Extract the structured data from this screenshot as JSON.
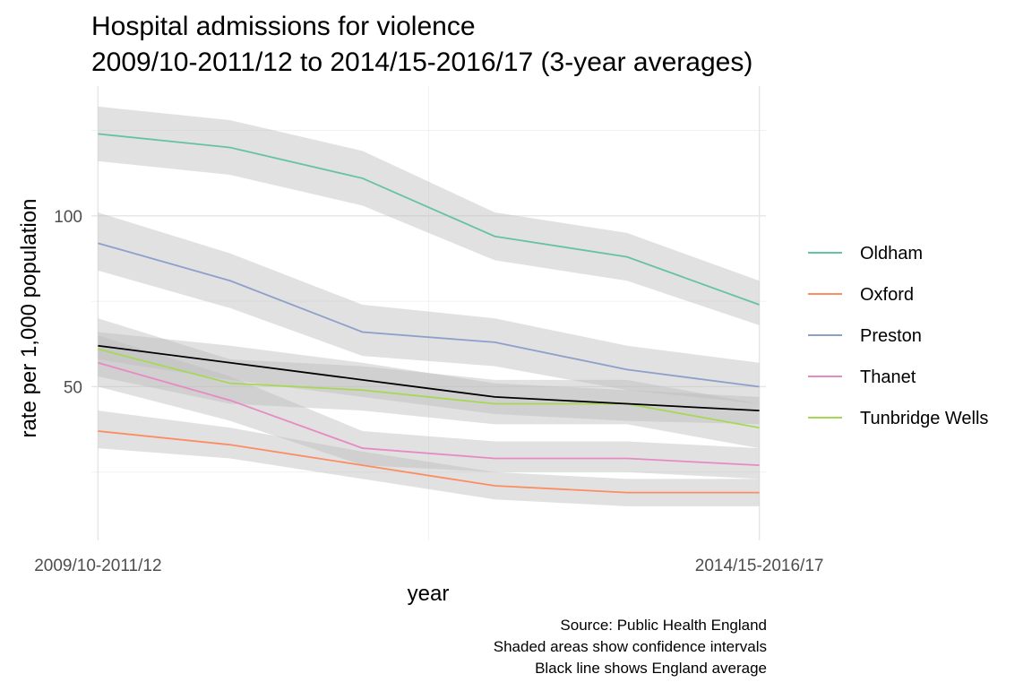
{
  "chart_data": {
    "type": "line",
    "title": "Hospital admissions for violence",
    "subtitle": "2009/10-2011/12 to 2014/15-2016/17 (3-year averages)",
    "xlabel": "year",
    "ylabel": "rate per 1,000 population",
    "x": [
      1,
      2,
      3,
      4,
      5,
      6
    ],
    "x_tick_labels": [
      {
        "x": 1,
        "label": "2009/10-2011/12"
      },
      {
        "x": 6,
        "label": "2014/15-2016/17"
      }
    ],
    "y_ticks": [
      50,
      100
    ],
    "ylim": [
      5,
      138
    ],
    "xlim": [
      0.95,
      6.05
    ],
    "grid": true,
    "legend_position": "right",
    "series": [
      {
        "name": "Oldham",
        "color": "#66c2a5",
        "values": [
          124,
          120,
          111,
          94,
          88,
          74
        ],
        "lower": [
          116,
          112,
          103,
          87,
          81,
          68
        ],
        "upper": [
          132,
          128,
          119,
          101,
          95,
          81
        ]
      },
      {
        "name": "Oxford",
        "color": "#fc8d62",
        "values": [
          37,
          33,
          27,
          21,
          19,
          19
        ],
        "lower": [
          32,
          29,
          23,
          17,
          15,
          15
        ],
        "upper": [
          43,
          38,
          31,
          25,
          23,
          23
        ]
      },
      {
        "name": "Preston",
        "color": "#8da0cb",
        "values": [
          92,
          81,
          66,
          63,
          55,
          50
        ],
        "lower": [
          84,
          73,
          59,
          56,
          49,
          45
        ],
        "upper": [
          101,
          89,
          74,
          70,
          62,
          57
        ]
      },
      {
        "name": "Thanet",
        "color": "#e78ac3",
        "values": [
          57,
          46,
          32,
          29,
          29,
          27
        ],
        "lower": [
          50,
          40,
          27,
          25,
          25,
          23
        ],
        "upper": [
          65,
          53,
          37,
          34,
          34,
          32
        ]
      },
      {
        "name": "Tunbridge Wells",
        "color": "#a6d854",
        "values": [
          61,
          51,
          49,
          45,
          45,
          38
        ],
        "lower": [
          53,
          45,
          43,
          39,
          39,
          32
        ],
        "upper": [
          70,
          58,
          56,
          52,
          52,
          45
        ]
      }
    ],
    "average": {
      "color": "#000000",
      "values": [
        62,
        57,
        52,
        47,
        45,
        43
      ],
      "lower": [
        58,
        52,
        47,
        42,
        40,
        39
      ],
      "upper": [
        66,
        62,
        57,
        51,
        49,
        47
      ]
    },
    "ribbon_color": "#bdbdbd"
  },
  "caption": [
    "Source: Public Health England",
    "Shaded areas show confidence intervals",
    "Black line shows England average"
  ]
}
